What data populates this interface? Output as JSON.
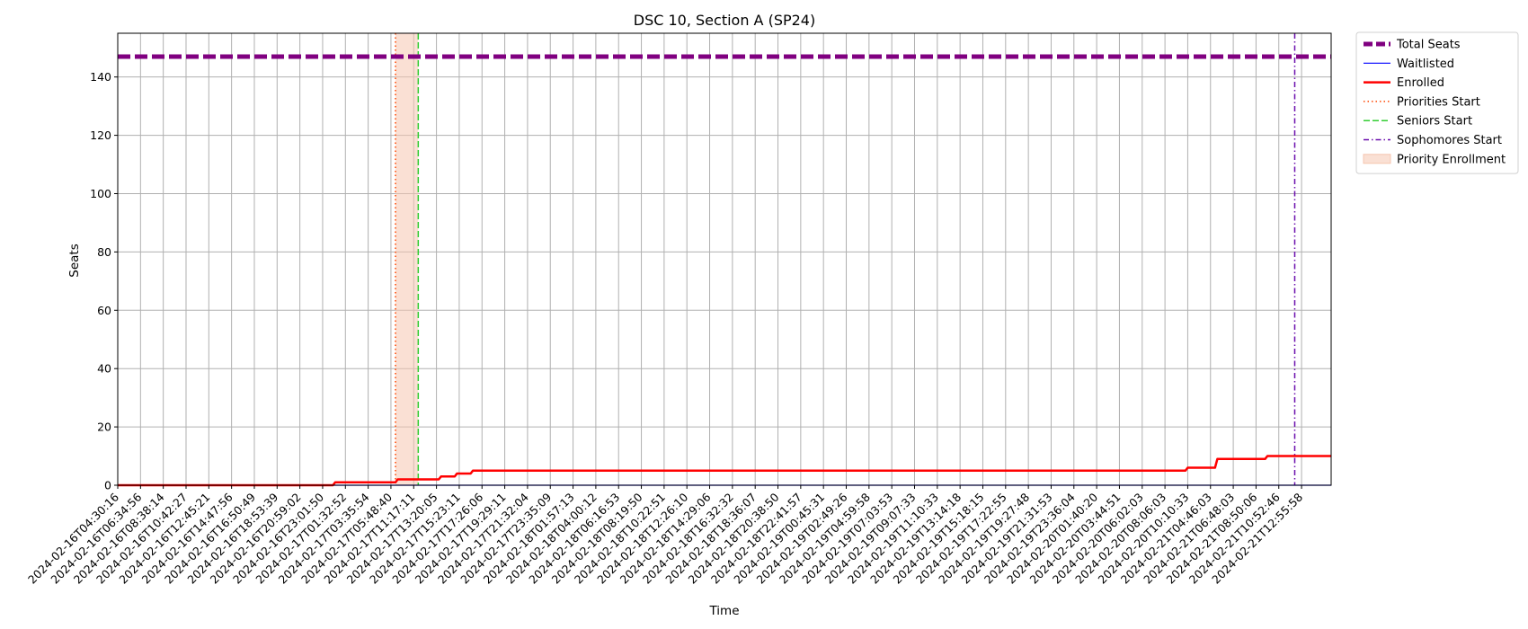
{
  "chart_data": {
    "type": "line",
    "title": "DSC 10, Section A (SP24)",
    "xlabel": "Time",
    "ylabel": "Seats",
    "ylim": [
      0,
      155
    ],
    "y_ticks": [
      0,
      20,
      40,
      60,
      80,
      100,
      120,
      140
    ],
    "grid": true,
    "legend_position": "outside-top-right",
    "x_tick_labels": [
      "2024-02-16T04:30:16",
      "2024-02-16T06:34:56",
      "2024-02-16T08:38:14",
      "2024-02-16T10:42:27",
      "2024-02-16T12:45:21",
      "2024-02-16T14:47:56",
      "2024-02-16T16:50:49",
      "2024-02-16T18:53:39",
      "2024-02-16T20:59:02",
      "2024-02-16T23:01:50",
      "2024-02-17T01:32:52",
      "2024-02-17T03:35:54",
      "2024-02-17T05:48:40",
      "2024-02-17T11:17:11",
      "2024-02-17T13:20:05",
      "2024-02-17T15:23:11",
      "2024-02-17T17:26:06",
      "2024-02-17T19:29:11",
      "2024-02-17T21:32:04",
      "2024-02-17T23:35:09",
      "2024-02-18T01:57:13",
      "2024-02-18T04:00:12",
      "2024-02-18T06:16:53",
      "2024-02-18T08:19:50",
      "2024-02-18T10:22:51",
      "2024-02-18T12:26:10",
      "2024-02-18T14:29:06",
      "2024-02-18T16:32:32",
      "2024-02-18T18:36:07",
      "2024-02-18T20:38:50",
      "2024-02-18T22:41:57",
      "2024-02-19T00:45:31",
      "2024-02-19T02:49:26",
      "2024-02-19T04:59:58",
      "2024-02-19T07:03:53",
      "2024-02-19T09:07:33",
      "2024-02-19T11:10:33",
      "2024-02-19T13:14:18",
      "2024-02-19T15:18:15",
      "2024-02-19T17:22:55",
      "2024-02-19T19:27:48",
      "2024-02-19T21:31:53",
      "2024-02-19T23:36:04",
      "2024-02-20T01:40:20",
      "2024-02-20T03:44:51",
      "2024-02-20T06:02:03",
      "2024-02-20T08:06:03",
      "2024-02-20T10:10:33",
      "2024-02-21T04:46:03",
      "2024-02-21T06:48:03",
      "2024-02-21T08:50:06",
      "2024-02-21T10:52:46",
      "2024-02-21T12:55:58"
    ],
    "series": [
      {
        "name": "Total Seats",
        "color": "#800080",
        "style": "dashed-thick",
        "points": [
          [
            0,
            147
          ],
          [
            53.3,
            147
          ]
        ]
      },
      {
        "name": "Waitlisted",
        "color": "#0000ff",
        "style": "solid-thin",
        "points": [
          [
            0,
            0
          ],
          [
            53.3,
            0
          ]
        ]
      },
      {
        "name": "Enrolled",
        "color": "#ff0000",
        "style": "solid",
        "points": [
          [
            0,
            0
          ],
          [
            9.45,
            0
          ],
          [
            9.55,
            1
          ],
          [
            12.2,
            1
          ],
          [
            12.3,
            2
          ],
          [
            14.1,
            2
          ],
          [
            14.2,
            3
          ],
          [
            14.8,
            3
          ],
          [
            14.9,
            4
          ],
          [
            15.5,
            4
          ],
          [
            15.6,
            5
          ],
          [
            46.9,
            5
          ],
          [
            47.0,
            6
          ],
          [
            48.2,
            6
          ],
          [
            48.3,
            9
          ],
          [
            50.4,
            9
          ],
          [
            50.5,
            10
          ],
          [
            53.3,
            10
          ]
        ]
      }
    ],
    "markers": [
      {
        "name": "Priorities Start",
        "color": "#ff4500",
        "style": "dotted",
        "x": 12.2
      },
      {
        "name": "Seniors Start",
        "color": "#32cd32",
        "style": "dashed",
        "x": 13.2
      },
      {
        "name": "Sophomores Start",
        "color": "#6a0dad",
        "style": "dashdot",
        "x": 51.7
      }
    ],
    "regions": [
      {
        "name": "Priority Enrollment",
        "color": "#f5c6b0",
        "x_start": 12.2,
        "x_end": 13.2
      }
    ],
    "legend_entries": [
      "Total Seats",
      "Waitlisted",
      "Enrolled",
      "Priorities Start",
      "Seniors Start",
      "Sophomores Start",
      "Priority Enrollment"
    ]
  }
}
